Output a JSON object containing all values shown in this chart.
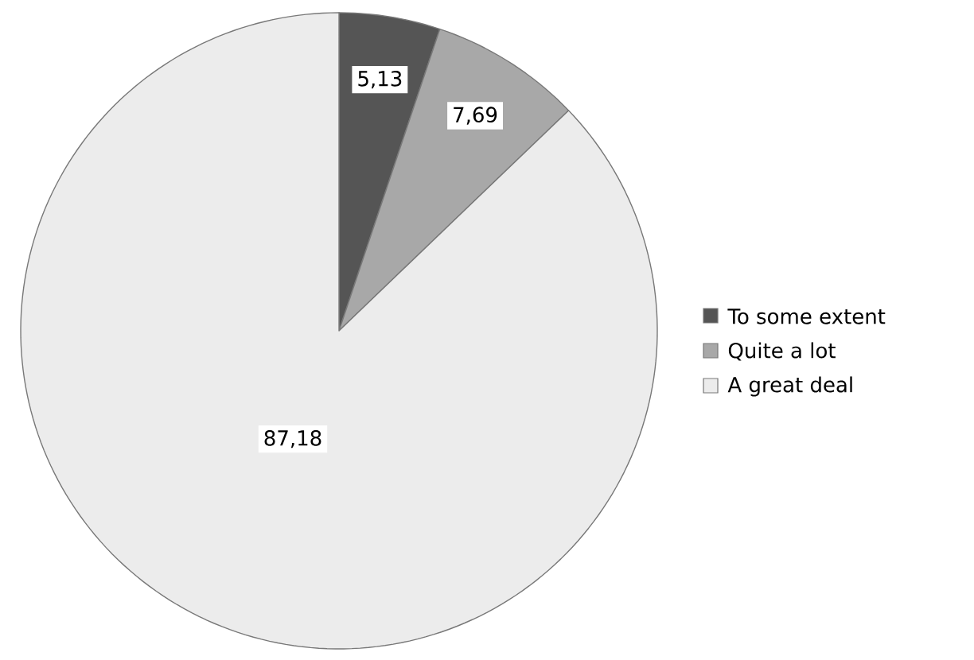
{
  "chart_data": {
    "type": "pie",
    "categories": [
      "To some extent",
      "Quite a lot",
      "A great deal"
    ],
    "values": [
      5.13,
      7.69,
      87.18
    ],
    "value_labels": [
      "5,13",
      "7,69",
      "87,18"
    ],
    "colors": [
      "#555555",
      "#a8a8a8",
      "#ececec"
    ],
    "legend": "right"
  }
}
